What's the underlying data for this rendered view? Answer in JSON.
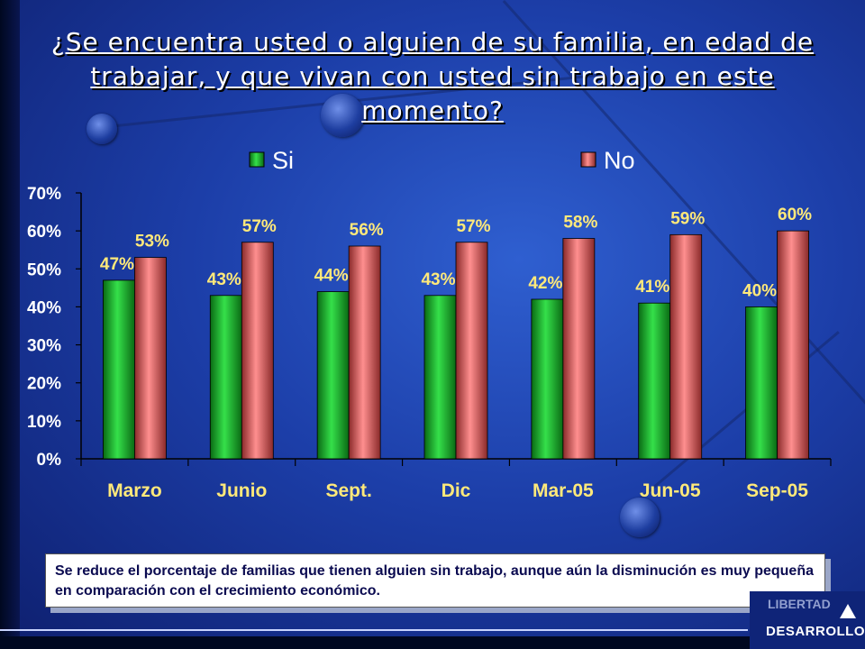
{
  "slide": {
    "title": "¿Se encuentra usted o alguien de su familia, en edad de trabajar, y que vivan con usted sin trabajo en este momento?",
    "note": "Se reduce el porcentaje de familias que tienen alguien sin trabajo, aunque aún la disminución es muy pequeña en comparación con el crecimiento económico.",
    "logo_top": "LIBERTAD",
    "logo_bottom": "DESARROLLO"
  },
  "colors": {
    "si": "#1fb830",
    "no": "#c85a5a",
    "label": "#ffe97a",
    "axis_text": "#ffffff"
  },
  "chart_data": {
    "type": "bar",
    "categories": [
      "Marzo",
      "Junio",
      "Sept.",
      "Dic",
      "Mar-05",
      "Jun-05",
      "Sep-05"
    ],
    "series": [
      {
        "name": "Si",
        "values": [
          47,
          43,
          44,
          43,
          42,
          41,
          40
        ]
      },
      {
        "name": "No",
        "values": [
          53,
          57,
          56,
          57,
          58,
          59,
          60
        ]
      }
    ],
    "value_labels": {
      "Si": [
        "47%",
        "43%",
        "44%",
        "43%",
        "42%",
        "41%",
        "40%"
      ],
      "No": [
        "53%",
        "57%",
        "56%",
        "57%",
        "58%",
        "59%",
        "60%"
      ]
    },
    "yticks": [
      "0%",
      "10%",
      "20%",
      "30%",
      "40%",
      "50%",
      "60%",
      "70%"
    ],
    "ylim": [
      0,
      70
    ],
    "legend_position": "top",
    "grid": false
  }
}
